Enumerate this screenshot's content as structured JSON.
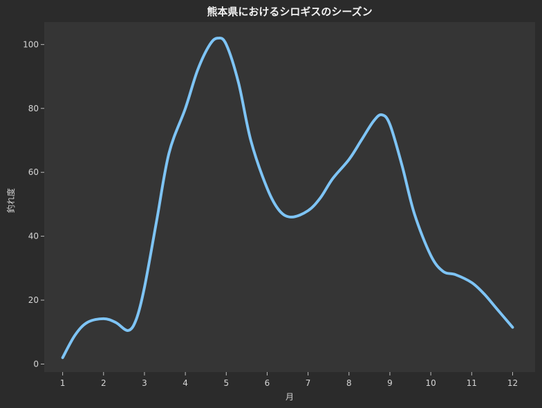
{
  "chart_data": {
    "type": "line",
    "title": "熊本県におけるシロギスのシーズン",
    "xlabel": "月",
    "ylabel": "釣れ度",
    "x": [
      1,
      2,
      3,
      4,
      5,
      6,
      7,
      8,
      9,
      10,
      11,
      12
    ],
    "x_tick_labels": [
      "1",
      "2",
      "3",
      "4",
      "5",
      "6",
      "7",
      "8",
      "9",
      "10",
      "11",
      "12"
    ],
    "y_ticks": [
      0,
      20,
      40,
      60,
      80,
      100
    ],
    "xlim": [
      0.55,
      12.55
    ],
    "ylim": [
      -2.5,
      107
    ],
    "grid": false,
    "series": [
      {
        "color": "#7ec4f5",
        "smooth": true,
        "points": [
          [
            1.0,
            2
          ],
          [
            1.3,
            9
          ],
          [
            1.6,
            13
          ],
          [
            2.0,
            14.2
          ],
          [
            2.3,
            13
          ],
          [
            2.6,
            10.5
          ],
          [
            2.8,
            14
          ],
          [
            3.0,
            24
          ],
          [
            3.3,
            45
          ],
          [
            3.6,
            66
          ],
          [
            4.0,
            80
          ],
          [
            4.3,
            92
          ],
          [
            4.6,
            100
          ],
          [
            4.8,
            102
          ],
          [
            5.0,
            100
          ],
          [
            5.3,
            88
          ],
          [
            5.6,
            70
          ],
          [
            6.0,
            55
          ],
          [
            6.3,
            48
          ],
          [
            6.6,
            46
          ],
          [
            7.0,
            48
          ],
          [
            7.3,
            52
          ],
          [
            7.6,
            58
          ],
          [
            8.0,
            64
          ],
          [
            8.3,
            70
          ],
          [
            8.6,
            76
          ],
          [
            8.8,
            78
          ],
          [
            9.0,
            75
          ],
          [
            9.3,
            62
          ],
          [
            9.6,
            47
          ],
          [
            10.0,
            34
          ],
          [
            10.3,
            29
          ],
          [
            10.6,
            28
          ],
          [
            11.0,
            25.5
          ],
          [
            11.3,
            22
          ],
          [
            11.6,
            17.5
          ],
          [
            12.0,
            11.5
          ]
        ]
      }
    ]
  }
}
